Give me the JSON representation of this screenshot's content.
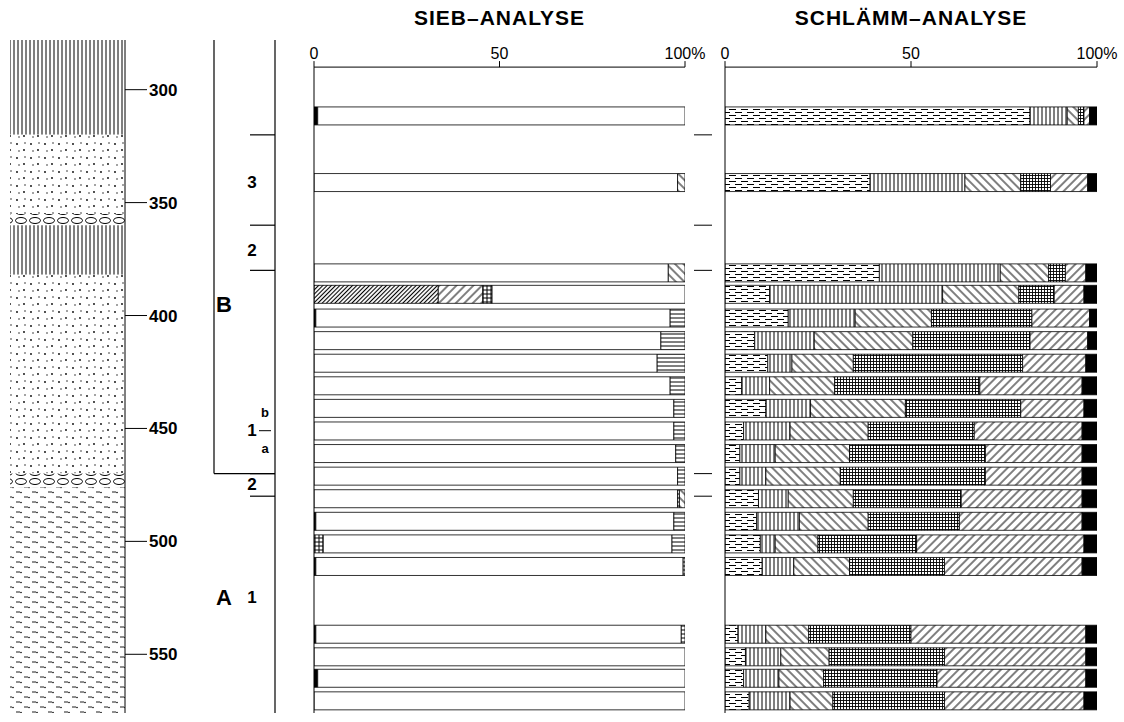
{
  "chart_data": [
    {
      "type": "profile",
      "ylim": [
        278,
        576
      ],
      "yticks": [
        300,
        350,
        400,
        450,
        500,
        550
      ],
      "layers": [
        {
          "from": 278,
          "to": 320
        },
        {
          "from": 320,
          "to": 355
        },
        {
          "from": 355,
          "to": 360
        },
        {
          "from": 360,
          "to": 382
        },
        {
          "from": 382,
          "to": 470
        },
        {
          "from": 470,
          "to": 476
        },
        {
          "from": 476,
          "to": 576
        }
      ],
      "stratigraphy": {
        "horizons": [
          {
            "label": "B",
            "depth": 395,
            "to": 470
          },
          {
            "label": "A",
            "depth": 525
          }
        ],
        "layers": [
          {
            "label": "3",
            "depth": 341,
            "from": 320
          },
          {
            "label": "2",
            "depth": 371,
            "from": 360
          },
          {
            "label": "1",
            "depth": 451,
            "from": 380,
            "sub": [
              {
                "label": "b",
                "depth": 443
              },
              {
                "label": "a",
                "depth": 459
              }
            ]
          },
          {
            "label": "2",
            "depth": 475,
            "from": 470
          },
          {
            "label": "1",
            "depth": 525,
            "from": 480
          }
        ]
      }
    },
    {
      "type": "bar",
      "title": "SIEB–ANALYSE",
      "orientation": "horizontal",
      "stacked": true,
      "tick_labels": "x",
      "y": [
        295.5,
        305.5,
        315,
        325,
        355,
        365,
        375,
        385,
        395,
        405,
        415,
        425,
        435,
        445,
        455,
        465,
        475.5,
        485,
        525,
        554.5
      ],
      "xlim": [
        0,
        100
      ],
      "xticks": [
        0,
        50,
        {
          "value": 100,
          "label": "100%"
        }
      ],
      "ylim": [
        290,
        576
      ],
      "series": [
        {
          "color": "#000000",
          "values": [
            0,
            1,
            0,
            0.5,
            0.5,
            0,
            0.5,
            0,
            0,
            0,
            0,
            0,
            0,
            0,
            0,
            0.5,
            0,
            0,
            0,
            1
          ]
        },
        {
          "color": "#000000",
          "values": [
            0,
            0,
            0,
            0,
            0,
            0,
            0,
            0,
            0,
            0,
            0,
            0,
            0,
            0,
            0,
            0,
            33.5,
            0,
            0,
            0
          ]
        },
        {
          "color": "#000000",
          "values": [
            0,
            0,
            0,
            0,
            0,
            0,
            0,
            0,
            0,
            0,
            0,
            0,
            0,
            0,
            0,
            0,
            12,
            0,
            0,
            0
          ]
        },
        {
          "color": "#000000",
          "values": [
            0,
            0,
            0,
            0,
            0,
            2.5,
            0,
            0,
            0,
            0,
            0,
            0,
            0,
            0,
            0,
            0,
            2.5,
            0,
            0,
            0
          ]
        },
        {
          "color": "#ffffff",
          "values": [
            100,
            99,
            100,
            98.5,
            99,
            94,
            96.5,
            98,
            98,
            97.5,
            97,
            97,
            96,
            92.5,
            93.5,
            95.5,
            52,
            95.5,
            98,
            99
          ]
        },
        {
          "color": "#000000",
          "values": [
            0,
            0,
            0,
            1,
            0.5,
            3.5,
            3,
            0.5,
            2,
            2.5,
            3,
            3,
            4,
            7.5,
            6.5,
            4,
            0,
            0,
            0,
            0
          ]
        },
        {
          "color": "#000000",
          "values": [
            0,
            0,
            0,
            0,
            0,
            0,
            0,
            1.5,
            0,
            0,
            0,
            0,
            0,
            0,
            0,
            0,
            0,
            4.5,
            2,
            0
          ]
        }
      ]
    },
    {
      "type": "bar",
      "title": "SCHLÄMM–ANALYSE",
      "orientation": "horizontal",
      "stacked": true,
      "tick_labels": "x",
      "y": [
        295.5,
        305.5,
        315,
        325,
        355,
        365,
        375,
        385,
        395,
        405,
        415,
        425,
        435,
        445,
        455,
        465,
        475.5,
        485,
        525,
        554.5
      ],
      "xlim": [
        0,
        100
      ],
      "xticks": [
        0,
        50,
        {
          "value": 100,
          "label": "100%"
        }
      ],
      "ylim": [
        290,
        576
      ],
      "series": [
        {
          "color": "#000000",
          "values": [
            6.5,
            5,
            5.5,
            3.5,
            10,
            9.5,
            8.5,
            9,
            4,
            4,
            5,
            11,
            4.5,
            11.5,
            8,
            17,
            12,
            41.5,
            39,
            82
          ]
        },
        {
          "color": "#000000",
          "values": [
            11,
            9.5,
            9.5,
            7.5,
            8.5,
            4,
            11.5,
            8,
            7,
            9.5,
            12.5,
            12,
            7.5,
            6.5,
            16,
            18,
            46.5,
            32.5,
            25.5,
            10
          ]
        },
        {
          "color": "#000000",
          "values": [
            11.5,
            12,
            13,
            11.5,
            15,
            11.5,
            18.5,
            17.5,
            20,
            20,
            21,
            25.5,
            17.5,
            16.5,
            26.5,
            20.5,
            20.5,
            13,
            15,
            3
          ]
        },
        {
          "color": "#000000",
          "values": [
            30,
            30.5,
            31,
            27.5,
            25.5,
            26.5,
            24.5,
            29,
            39,
            36.5,
            28.5,
            31,
            39,
            45.5,
            31.5,
            27,
            9.5,
            4.5,
            8,
            1.5
          ]
        },
        {
          "color": "#000000",
          "values": [
            37.5,
            40,
            38,
            47,
            37,
            45,
            33,
            32.5,
            26,
            26,
            29,
            17,
            27.5,
            17,
            15.5,
            15.5,
            8,
            5.5,
            10,
            1.5
          ]
        },
        {
          "color": "#000000",
          "values": [
            3.5,
            3,
            3,
            3,
            4,
            3.5,
            4,
            4,
            4,
            4,
            4,
            3.5,
            4,
            3,
            2.5,
            2,
            3.5,
            3,
            2.5,
            2
          ]
        }
      ]
    }
  ]
}
